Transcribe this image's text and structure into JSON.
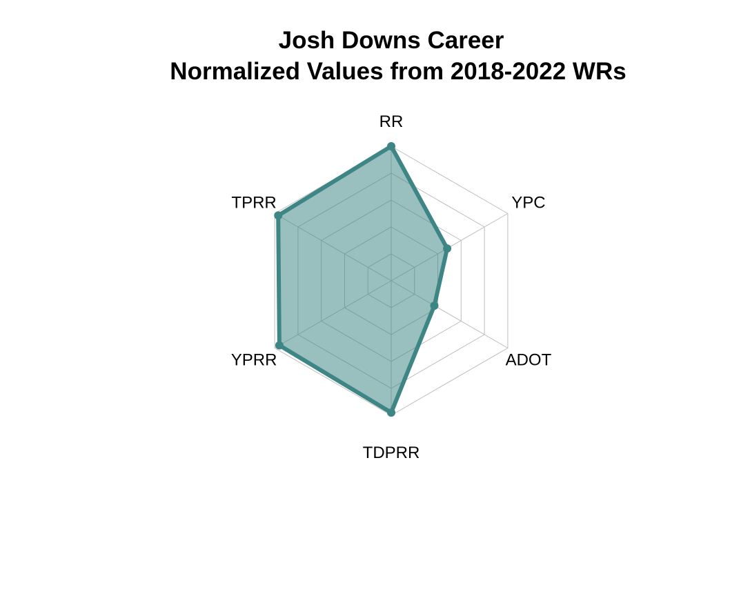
{
  "chart_data": {
    "type": "radar",
    "title_lines": [
      "Josh Downs Career",
      "Normalized Values from 2018-2022 WRs"
    ],
    "axes": [
      "RR",
      "YPC",
      "ADOT",
      "TDPRR",
      "YPRR",
      "TPRR"
    ],
    "values": [
      1.0,
      0.48,
      0.37,
      0.98,
      0.96,
      0.97
    ],
    "range": [
      0,
      1
    ],
    "grid_levels": 5,
    "grid": true,
    "colors": {
      "line": "#3e8585",
      "fill": "#3e8585",
      "fill_opacity": 0.52,
      "grid": "#bdbdbd"
    }
  }
}
